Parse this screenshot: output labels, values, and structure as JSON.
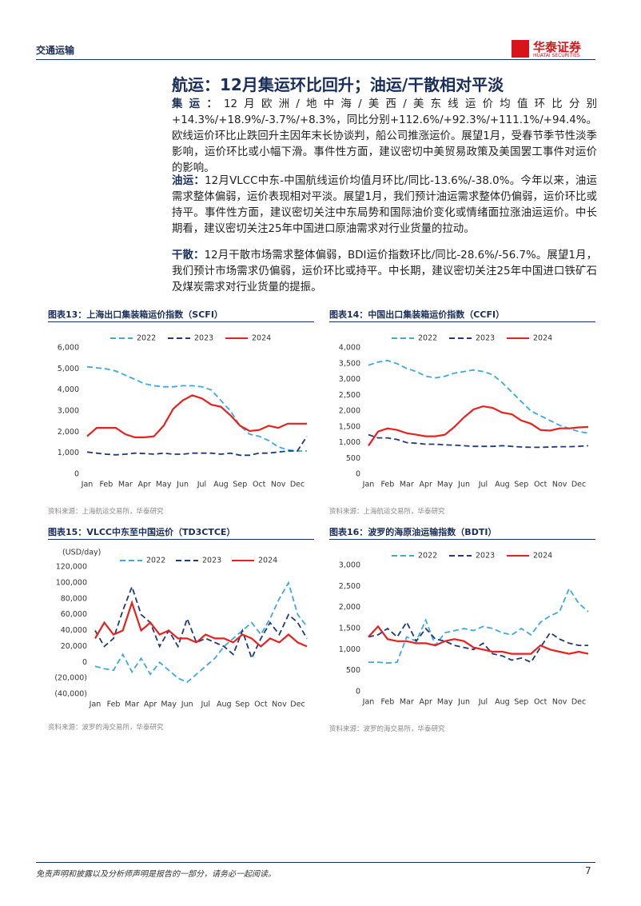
{
  "header": {
    "section": "交通运输",
    "logo_cn": "华泰证券",
    "logo_en": "HUATAI SECURITIES"
  },
  "title": "航运：12月集运环比回升；油运/干散相对平淡",
  "paragraphs": [
    {
      "label": "集运：",
      "text": "12月欧洲/地中海/美西/美东线运价均值环比分别+14.3%/+18.9%/-3.7%/+8.3%，同比分别+112.6%/+92.3%/+111.1%/+94.4%。欧线运价环比止跌回升主因年末长协谈判，船公司推涨运价。展望1月，受春节季节性淡季影响，运价环比或小幅下滑。事件性方面，建议密切中美贸易政策及美国罢工事件对运价的影响。"
    },
    {
      "label": "油运：",
      "text": "12月VLCC中东-中国航线运价均值月环比/同比-13.6%/-38.0%。今年以来，油运需求整体偏弱，运价表现相对平淡。展望1月，我们预计油运需求整体仍偏弱，运价环比或持平。事件性方面，建议密切关注中东局势和国际油价变化或情绪面拉涨油运运价。中长期看，建议密切关注25年中国进口原油需求对行业货量的拉动。"
    },
    {
      "label": "干散：",
      "text": "12月干散市场需求整体偏弱，BDI运价指数环比/同比-28.6%/-56.7%。展望1月，我们预计市场需求仍偏弱，运价环比或持平。中长期，建议密切关注25年中国进口铁矿石及煤炭需求对行业货量的提振。"
    }
  ],
  "chart_data": [
    {
      "type": "line",
      "label": "图表13：",
      "title": "上海出口集装箱运价指数（SCFI）",
      "source": "资料来源：上海航运交易所，华泰研究",
      "categories": [
        "Jan",
        null,
        "Feb",
        null,
        "Mar",
        null,
        "Apr",
        null,
        "May",
        null,
        "Jun",
        null,
        "Jul",
        null,
        "Aug",
        null,
        "Sep",
        null,
        "Oct",
        null,
        "Nov",
        null,
        "Dec",
        null
      ],
      "ylim": [
        0,
        6000
      ],
      "yticks": [
        0,
        {
          "value": 1000,
          "label": "1,000"
        },
        {
          "value": 2000,
          "label": "2,000"
        },
        {
          "value": 3000,
          "label": "3,000"
        },
        {
          "value": 4000,
          "label": "4,000"
        },
        {
          "value": 5000,
          "label": "5,000"
        },
        {
          "value": 6000,
          "label": "6,000"
        }
      ],
      "series": [
        {
          "name": "2022",
          "color": "#3da9e0",
          "line_style": "dashed",
          "values": [
            5100,
            5050,
            5000,
            4900,
            4700,
            4500,
            4300,
            4200,
            4150,
            4150,
            4200,
            4200,
            4150,
            4000,
            3500,
            3000,
            2300,
            1900,
            1800,
            1600,
            1300,
            1150,
            1100,
            1100
          ]
        },
        {
          "name": "2023",
          "color": "#1f3a7a",
          "line_style": "dashed",
          "values": [
            1050,
            1000,
            950,
            920,
            950,
            1000,
            980,
            950,
            1000,
            950,
            950,
            1000,
            1000,
            1000,
            950,
            1000,
            900,
            900,
            1000,
            1000,
            1050,
            1100,
            1100,
            1800
          ]
        },
        {
          "name": "2024",
          "color": "#e8211f",
          "line_style": "solid",
          "values": [
            1800,
            2200,
            2200,
            2200,
            1900,
            1750,
            1750,
            1800,
            2300,
            3100,
            3500,
            3750,
            3600,
            3300,
            3200,
            2800,
            2300,
            2050,
            2100,
            2300,
            2200,
            2400,
            2400,
            2400
          ]
        }
      ]
    },
    {
      "type": "line",
      "label": "图表14：",
      "title": "中国出口集装箱运价指数（CCFI）",
      "source": "资料来源：上海航运交易所，华泰研究",
      "categories": [
        "Jan",
        null,
        "Feb",
        null,
        "Mar",
        null,
        "Apr",
        null,
        "May",
        null,
        "Jun",
        null,
        "Jul",
        null,
        "Aug",
        null,
        "Sep",
        null,
        "Oct",
        null,
        "Nov",
        null,
        "Dec",
        null
      ],
      "ylim": [
        0,
        4000
      ],
      "yticks": [
        0,
        500,
        {
          "value": 1000,
          "label": "1,000"
        },
        {
          "value": 1500,
          "label": "1,500"
        },
        {
          "value": 2000,
          "label": "2,000"
        },
        {
          "value": 2500,
          "label": "2,500"
        },
        {
          "value": 3000,
          "label": "3,000"
        },
        {
          "value": 3500,
          "label": "3,500"
        },
        {
          "value": 4000,
          "label": "4,000"
        }
      ],
      "series": [
        {
          "name": "2022",
          "color": "#3da9e0",
          "line_style": "dashed",
          "values": [
            3450,
            3550,
            3600,
            3500,
            3350,
            3250,
            3100,
            3050,
            3100,
            3200,
            3250,
            3300,
            3250,
            3150,
            2900,
            2600,
            2300,
            2000,
            1850,
            1700,
            1550,
            1450,
            1350,
            1300
          ]
        },
        {
          "name": "2023",
          "color": "#1f3a7a",
          "line_style": "dashed",
          "values": [
            1250,
            1150,
            1150,
            1100,
            1000,
            980,
            950,
            950,
            930,
            920,
            900,
            880,
            880,
            880,
            900,
            880,
            860,
            850,
            850,
            860,
            870,
            870,
            880,
            900
          ]
        },
        {
          "name": "2024",
          "color": "#e8211f",
          "line_style": "solid",
          "values": [
            900,
            1350,
            1450,
            1400,
            1300,
            1250,
            1200,
            1200,
            1250,
            1500,
            1800,
            2050,
            2150,
            2100,
            1950,
            1900,
            1700,
            1600,
            1400,
            1380,
            1450,
            1450,
            1480,
            1500
          ]
        }
      ]
    },
    {
      "type": "line",
      "label": "图表15：",
      "title": "VLCC中东至中国运价（TD3CTCE）",
      "source": "资料来源：波罗的海交易所，华泰研究",
      "ylabel": "(USD/day)",
      "categories": [
        "Jan",
        null,
        "Feb",
        null,
        "Mar",
        null,
        "Apr",
        null,
        "May",
        null,
        "Jun",
        null,
        "Jul",
        null,
        "Aug",
        null,
        "Sep",
        null,
        "Oct",
        null,
        "Nov",
        null,
        "Dec",
        null
      ],
      "ylim": [
        -40000,
        120000
      ],
      "yticks": [
        {
          "value": -40000,
          "label": "(40,000)"
        },
        {
          "value": -20000,
          "label": "(20,000)"
        },
        0,
        {
          "value": 20000,
          "label": "20,000"
        },
        {
          "value": 40000,
          "label": "40,000"
        },
        {
          "value": 60000,
          "label": "60,000"
        },
        {
          "value": 80000,
          "label": "80,000"
        },
        {
          "value": 100000,
          "label": "100,000"
        },
        {
          "value": 120000,
          "label": "120,000"
        }
      ],
      "series": [
        {
          "name": "2022",
          "color": "#3da9e0",
          "line_style": "dashed",
          "values": [
            -5000,
            -8000,
            -10000,
            10000,
            -12000,
            5000,
            -15000,
            0,
            -10000,
            -20000,
            -25000,
            -15000,
            -5000,
            5000,
            20000,
            30000,
            40000,
            50000,
            35000,
            55000,
            80000,
            100000,
            60000,
            45000
          ]
        },
        {
          "name": "2023",
          "color": "#1f3a7a",
          "line_style": "dashed",
          "values": [
            40000,
            20000,
            30000,
            65000,
            95000,
            60000,
            50000,
            20000,
            40000,
            20000,
            55000,
            25000,
            30000,
            25000,
            20000,
            10000,
            40000,
            5000,
            30000,
            50000,
            35000,
            60000,
            50000,
            30000
          ]
        },
        {
          "name": "2024",
          "color": "#e8211f",
          "line_style": "solid",
          "values": [
            30000,
            50000,
            35000,
            40000,
            75000,
            40000,
            50000,
            35000,
            40000,
            30000,
            30000,
            25000,
            35000,
            30000,
            30000,
            25000,
            35000,
            30000,
            20000,
            30000,
            25000,
            35000,
            25000,
            20000
          ]
        }
      ]
    },
    {
      "type": "line",
      "label": "图表16：",
      "title": "波罗的海原油运输指数（BDTI）",
      "source": "资料来源：波罗的海交易所，华泰研究",
      "categories": [
        "Jan",
        null,
        "Feb",
        null,
        "Mar",
        null,
        "Apr",
        null,
        "May",
        null,
        "Jun",
        null,
        "Jul",
        null,
        "Aug",
        null,
        "Sep",
        null,
        "Oct",
        null,
        "Nov",
        null,
        "Dec",
        null
      ],
      "ylim": [
        0,
        3000
      ],
      "yticks": [
        0,
        500,
        {
          "value": 1000,
          "label": "1,000"
        },
        {
          "value": 1500,
          "label": "1,500"
        },
        {
          "value": 2000,
          "label": "2,000"
        },
        {
          "value": 2500,
          "label": "2,500"
        },
        {
          "value": 3000,
          "label": "3,000"
        }
      ],
      "series": [
        {
          "name": "2022",
          "color": "#3da9e0",
          "line_style": "dashed",
          "values": [
            700,
            700,
            680,
            700,
            1300,
            1200,
            1700,
            1100,
            1400,
            1450,
            1500,
            1450,
            1550,
            1500,
            1400,
            1350,
            1500,
            1350,
            1650,
            1800,
            1900,
            2450,
            2100,
            1900
          ]
        },
        {
          "name": "2023",
          "color": "#1f3a7a",
          "line_style": "dashed",
          "values": [
            1300,
            1350,
            1500,
            1300,
            1650,
            1200,
            1500,
            1250,
            1200,
            1100,
            1050,
            1000,
            1150,
            900,
            850,
            750,
            800,
            700,
            1050,
            1400,
            1250,
            1150,
            1100,
            1100
          ]
        },
        {
          "name": "2024",
          "color": "#e8211f",
          "line_style": "solid",
          "values": [
            1300,
            1550,
            1250,
            1200,
            1200,
            1150,
            1150,
            1100,
            1200,
            1250,
            1200,
            1050,
            1000,
            950,
            950,
            900,
            900,
            900,
            1100,
            1000,
            950,
            900,
            950,
            900
          ]
        }
      ]
    }
  ],
  "footer": {
    "disclaimer": "免责声明和披露以及分析师声明是报告的一部分，请务必一起阅读。",
    "page": "7"
  }
}
